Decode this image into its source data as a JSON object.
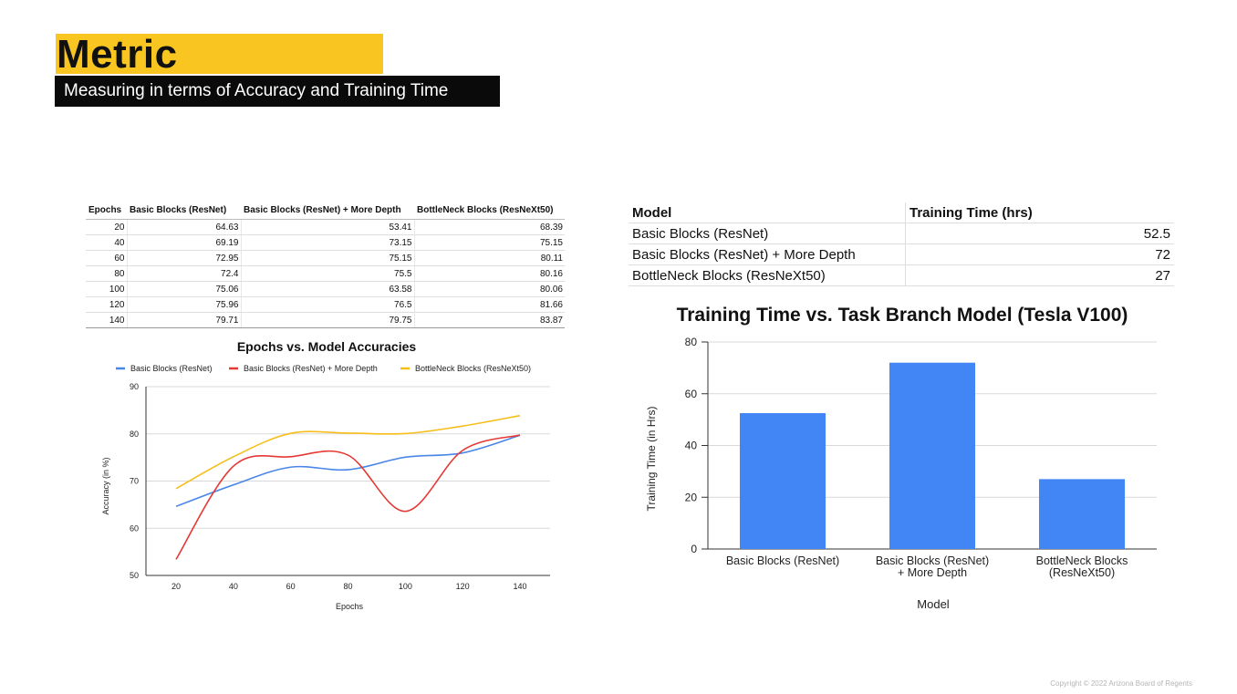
{
  "header": {
    "title": "Metric",
    "subtitle": "Measuring in terms of Accuracy and Training Time"
  },
  "accuracy_table": {
    "headers": [
      "Epochs",
      "Basic Blocks (ResNet)",
      "Basic Blocks (ResNet) + More Depth",
      "BottleNeck Blocks (ResNeXt50)"
    ],
    "rows": [
      [
        "20",
        "64.63",
        "53.41",
        "68.39"
      ],
      [
        "40",
        "69.19",
        "73.15",
        "75.15"
      ],
      [
        "60",
        "72.95",
        "75.15",
        "80.11"
      ],
      [
        "80",
        "72.4",
        "75.5",
        "80.16"
      ],
      [
        "100",
        "75.06",
        "63.58",
        "80.06"
      ],
      [
        "120",
        "75.96",
        "76.5",
        "81.66"
      ],
      [
        "140",
        "79.71",
        "79.75",
        "83.87"
      ]
    ]
  },
  "time_table": {
    "headers": [
      "Model",
      "Training Time (hrs)"
    ],
    "rows": [
      [
        "Basic Blocks (ResNet)",
        "52.5"
      ],
      [
        "Basic Blocks (ResNet) + More Depth",
        "72"
      ],
      [
        "BottleNeck Blocks (ResNeXt50)",
        "27"
      ]
    ]
  },
  "footer": "Copyright © 2022 Arizona Board of Regents",
  "chart_data": [
    {
      "type": "line",
      "title": "Epochs vs. Model Accuracies",
      "xlabel": "Epochs",
      "ylabel": "Accuracy (in %)",
      "x": [
        20,
        40,
        60,
        80,
        100,
        120,
        140
      ],
      "xticks": [
        "20",
        "40",
        "60",
        "80",
        "100",
        "120",
        "140"
      ],
      "yticks": [
        "50",
        "60",
        "70",
        "80",
        "90"
      ],
      "ylim": [
        50,
        90
      ],
      "grid": true,
      "legend_position": "top",
      "series": [
        {
          "name": "Basic Blocks (ResNet)",
          "color": "#4a86e8",
          "values": [
            64.63,
            69.19,
            72.95,
            72.4,
            75.06,
            75.96,
            79.71
          ]
        },
        {
          "name": "Basic Blocks (ResNet) + More Depth",
          "color": "#e53935",
          "values": [
            53.41,
            73.15,
            75.15,
            75.5,
            63.58,
            76.5,
            79.75
          ]
        },
        {
          "name": "BottleNeck Blocks (ResNeXt50)",
          "color": "#f6be1a",
          "values": [
            68.39,
            75.15,
            80.11,
            80.16,
            80.06,
            81.66,
            83.87
          ]
        }
      ]
    },
    {
      "type": "bar",
      "title": "Training Time vs. Task Branch Model (Tesla V100)",
      "xlabel": "Model",
      "ylabel": "Training Time (in Hrs)",
      "categories": [
        [
          "Basic Blocks (ResNet)"
        ],
        [
          "Basic Blocks (ResNet)",
          "+ More Depth"
        ],
        [
          "BottleNeck Blocks",
          "(ResNeXt50)"
        ]
      ],
      "values": [
        52.5,
        72,
        27
      ],
      "yticks": [
        "0",
        "20",
        "40",
        "60",
        "80"
      ],
      "ylim": [
        0,
        80
      ],
      "grid": true,
      "color": "#4285f4"
    }
  ]
}
